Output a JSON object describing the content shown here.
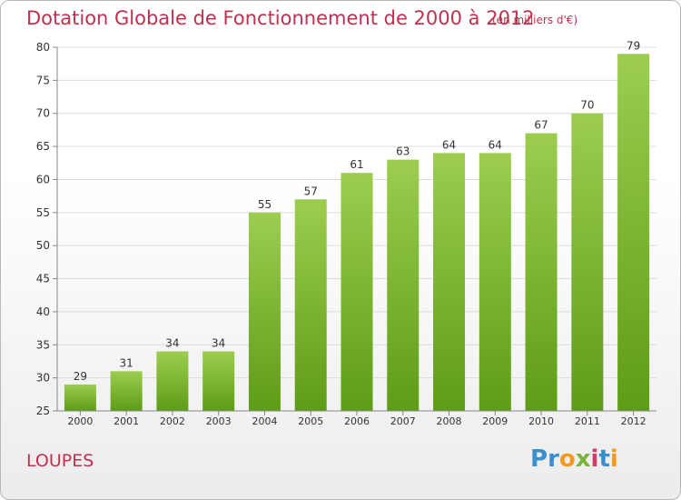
{
  "chart_data": {
    "type": "bar",
    "title": "Dotation Globale de Fonctionnement de 2000 à 2012",
    "subtitle": "(en milliers d'€)",
    "categories": [
      "2000",
      "2001",
      "2002",
      "2003",
      "2004",
      "2005",
      "2006",
      "2007",
      "2008",
      "2009",
      "2010",
      "2011",
      "2012"
    ],
    "values": [
      29,
      31,
      34,
      34,
      55,
      57,
      61,
      63,
      64,
      64,
      67,
      70,
      79
    ],
    "xlabel": "",
    "ylabel": "",
    "ylim": [
      25,
      80
    ],
    "yticks": [
      25,
      30,
      35,
      40,
      45,
      50,
      55,
      60,
      65,
      70,
      75,
      80
    ],
    "grid": true,
    "bar_color": "#7cc234"
  },
  "commune": "LOUPES",
  "logo": {
    "letters": [
      "P",
      "r",
      "o",
      "x",
      "i",
      "t",
      "i"
    ],
    "colors": [
      "#3a8fd0",
      "#3a8fd0",
      "#f39a1c",
      "#7ab33a",
      "#d23a6a",
      "#3a8fd0",
      "#f39a1c"
    ]
  }
}
